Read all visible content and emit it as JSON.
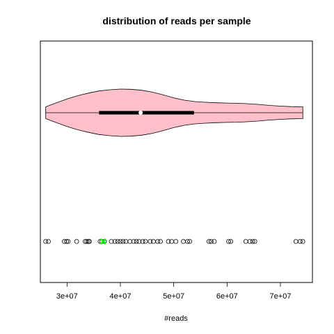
{
  "chart_data": {
    "type": "violin",
    "title": "distribution of reads per sample",
    "xlabel": "#reads",
    "xlim": [
      25000000,
      76000000
    ],
    "x_ticks": [
      30000000,
      40000000,
      50000000,
      60000000,
      70000000
    ],
    "x_tick_labels": [
      "3e+07",
      "4e+07",
      "5e+07",
      "6e+07",
      "7e+07"
    ],
    "colors": {
      "violin_fill": "#ffc0cb",
      "outline": "#000000",
      "median_dot": "#ffffff",
      "highlight": "#00ff00"
    },
    "violin": {
      "min": 26000000,
      "q1": 36000000,
      "median": 43800000,
      "q3": 53800000,
      "max": 74200000,
      "density_profile": [
        [
          26000000,
          0.25
        ],
        [
          28000000,
          0.42
        ],
        [
          30000000,
          0.58
        ],
        [
          32000000,
          0.72
        ],
        [
          34000000,
          0.83
        ],
        [
          36000000,
          0.92
        ],
        [
          38000000,
          0.97
        ],
        [
          40000000,
          1.0
        ],
        [
          42000000,
          0.99
        ],
        [
          44000000,
          0.95
        ],
        [
          46000000,
          0.87
        ],
        [
          48000000,
          0.76
        ],
        [
          50000000,
          0.63
        ],
        [
          52000000,
          0.53
        ],
        [
          54000000,
          0.47
        ],
        [
          56000000,
          0.44
        ],
        [
          58000000,
          0.42
        ],
        [
          60000000,
          0.41
        ],
        [
          62000000,
          0.4
        ],
        [
          64000000,
          0.38
        ],
        [
          66000000,
          0.35
        ],
        [
          68000000,
          0.31
        ],
        [
          70000000,
          0.28
        ],
        [
          72000000,
          0.26
        ],
        [
          74200000,
          0.25
        ]
      ]
    },
    "points": [
      26000000,
      26500000,
      29500000,
      29900000,
      30200000,
      31800000,
      33400000,
      33700000,
      34000000,
      34200000,
      36200000,
      36500000,
      37000000,
      38300000,
      39000000,
      39500000,
      40000000,
      40500000,
      41000000,
      41800000,
      42500000,
      43000000,
      43500000,
      44200000,
      44700000,
      45600000,
      46200000,
      47000000,
      47500000,
      49000000,
      49600000,
      50400000,
      51800000,
      52600000,
      53000000,
      56600000,
      57000000,
      57600000,
      60300000,
      60700000,
      63500000,
      64300000,
      64800000,
      65200000,
      72900000,
      73700000,
      74200000
    ],
    "highlight_point": 36800000
  }
}
